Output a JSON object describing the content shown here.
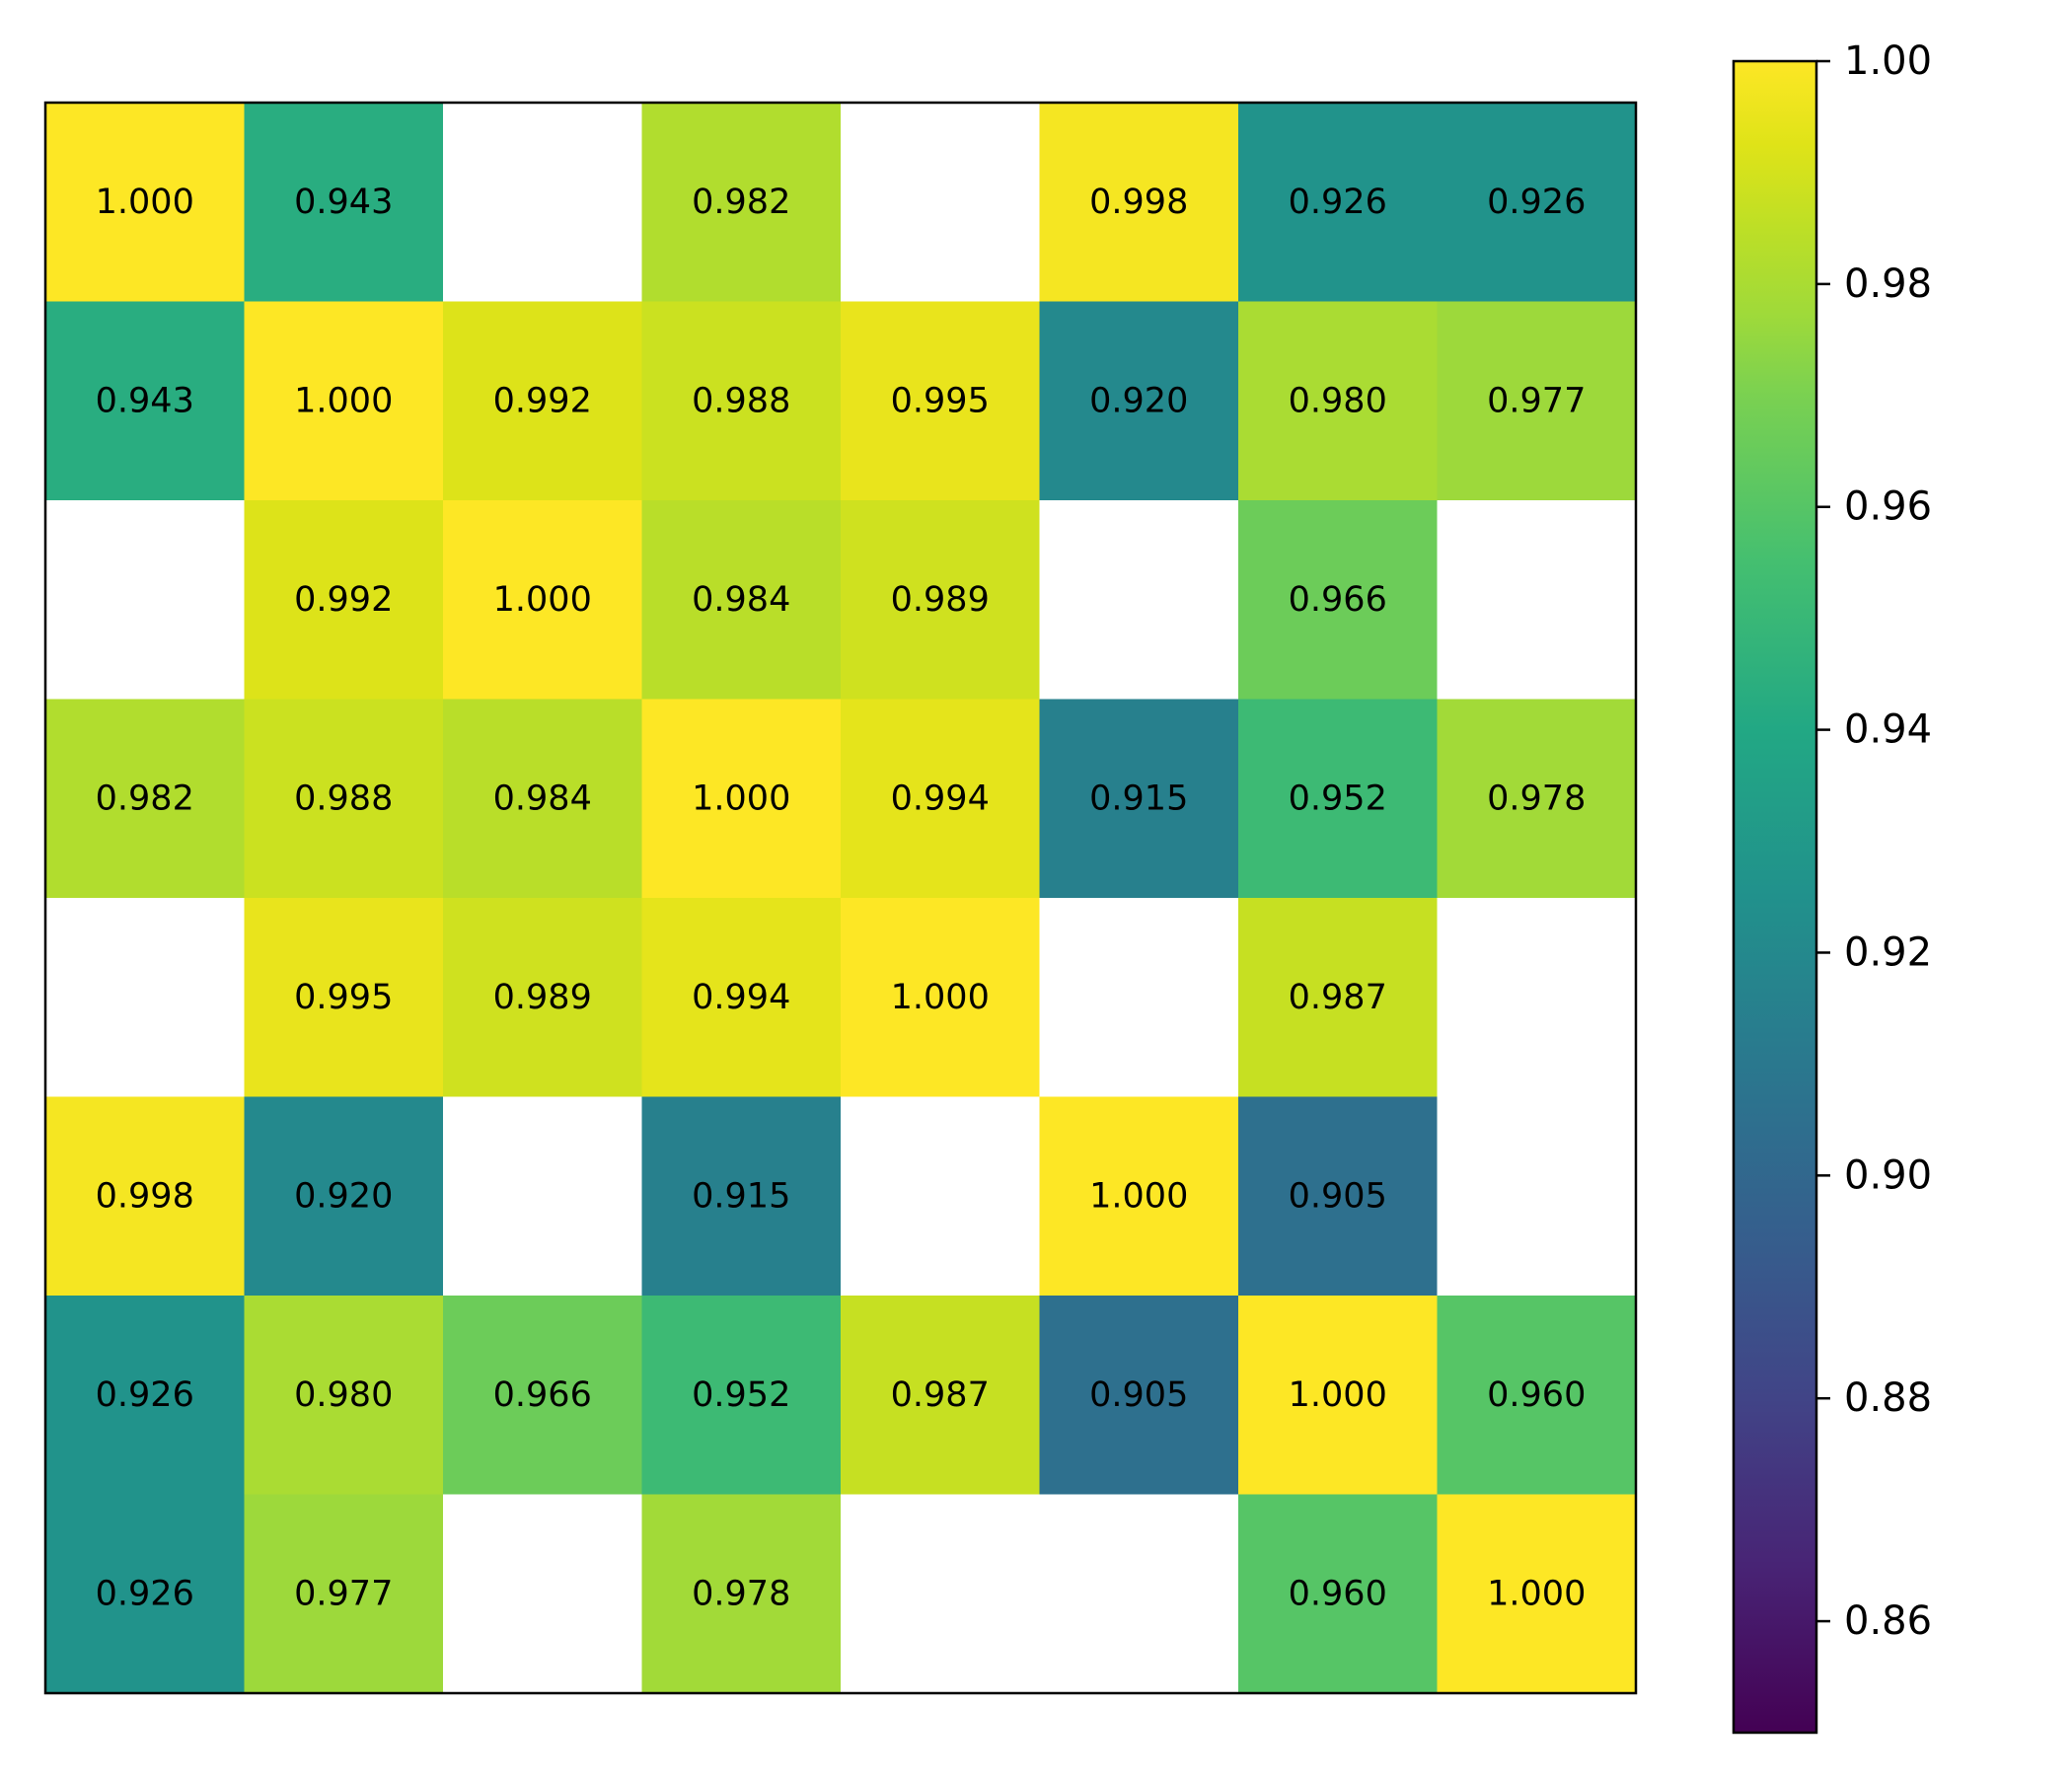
{
  "chart_data": {
    "type": "heatmap",
    "rows": 8,
    "cols": 8,
    "values": [
      [
        1.0,
        0.943,
        null,
        0.982,
        null,
        0.998,
        0.926,
        0.926
      ],
      [
        0.943,
        1.0,
        0.992,
        0.988,
        0.995,
        0.92,
        0.98,
        0.977
      ],
      [
        null,
        0.992,
        1.0,
        0.984,
        0.989,
        null,
        0.966,
        null
      ],
      [
        0.982,
        0.988,
        0.984,
        1.0,
        0.994,
        0.915,
        0.952,
        0.978
      ],
      [
        null,
        0.995,
        0.989,
        0.994,
        1.0,
        null,
        0.987,
        null
      ],
      [
        0.998,
        0.92,
        null,
        0.915,
        null,
        1.0,
        0.905,
        null
      ],
      [
        0.926,
        0.98,
        0.966,
        0.952,
        0.987,
        0.905,
        1.0,
        0.96
      ],
      [
        0.926,
        0.977,
        null,
        0.978,
        null,
        null,
        0.96,
        1.0
      ]
    ],
    "cell_labels": [
      [
        "1.000",
        "0.943",
        "",
        "0.982",
        "",
        "0.998",
        "0.926",
        "0.926"
      ],
      [
        "0.943",
        "1.000",
        "0.992",
        "0.988",
        "0.995",
        "0.920",
        "0.980",
        "0.977"
      ],
      [
        "",
        "0.992",
        "1.000",
        "0.984",
        "0.989",
        "",
        "0.966",
        ""
      ],
      [
        "0.982",
        "0.988",
        "0.984",
        "1.000",
        "0.994",
        "0.915",
        "0.952",
        "0.978"
      ],
      [
        "",
        "0.995",
        "0.989",
        "0.994",
        "1.000",
        "",
        "0.987",
        ""
      ],
      [
        "0.998",
        "0.920",
        "",
        "0.915",
        "",
        "1.000",
        "0.905",
        ""
      ],
      [
        "0.926",
        "0.980",
        "0.966",
        "0.952",
        "0.987",
        "0.905",
        "1.000",
        "0.960"
      ],
      [
        "0.926",
        "0.977",
        "",
        "0.978",
        "",
        "",
        "0.960",
        "1.000"
      ]
    ],
    "colormap": "viridis",
    "vmin": 0.85,
    "vmax": 1.0,
    "colorbar": {
      "ticks": [
        0.86,
        0.88,
        0.9,
        0.92,
        0.94,
        0.96,
        0.98,
        1.0
      ],
      "tick_labels": [
        "0.86",
        "0.88",
        "0.90",
        "0.92",
        "0.94",
        "0.96",
        "0.98",
        "1.00"
      ],
      "placement": "right"
    },
    "title": "",
    "xlabel": "",
    "ylabel": "",
    "x_tick_labels": [],
    "y_tick_labels": [],
    "grid": false
  }
}
